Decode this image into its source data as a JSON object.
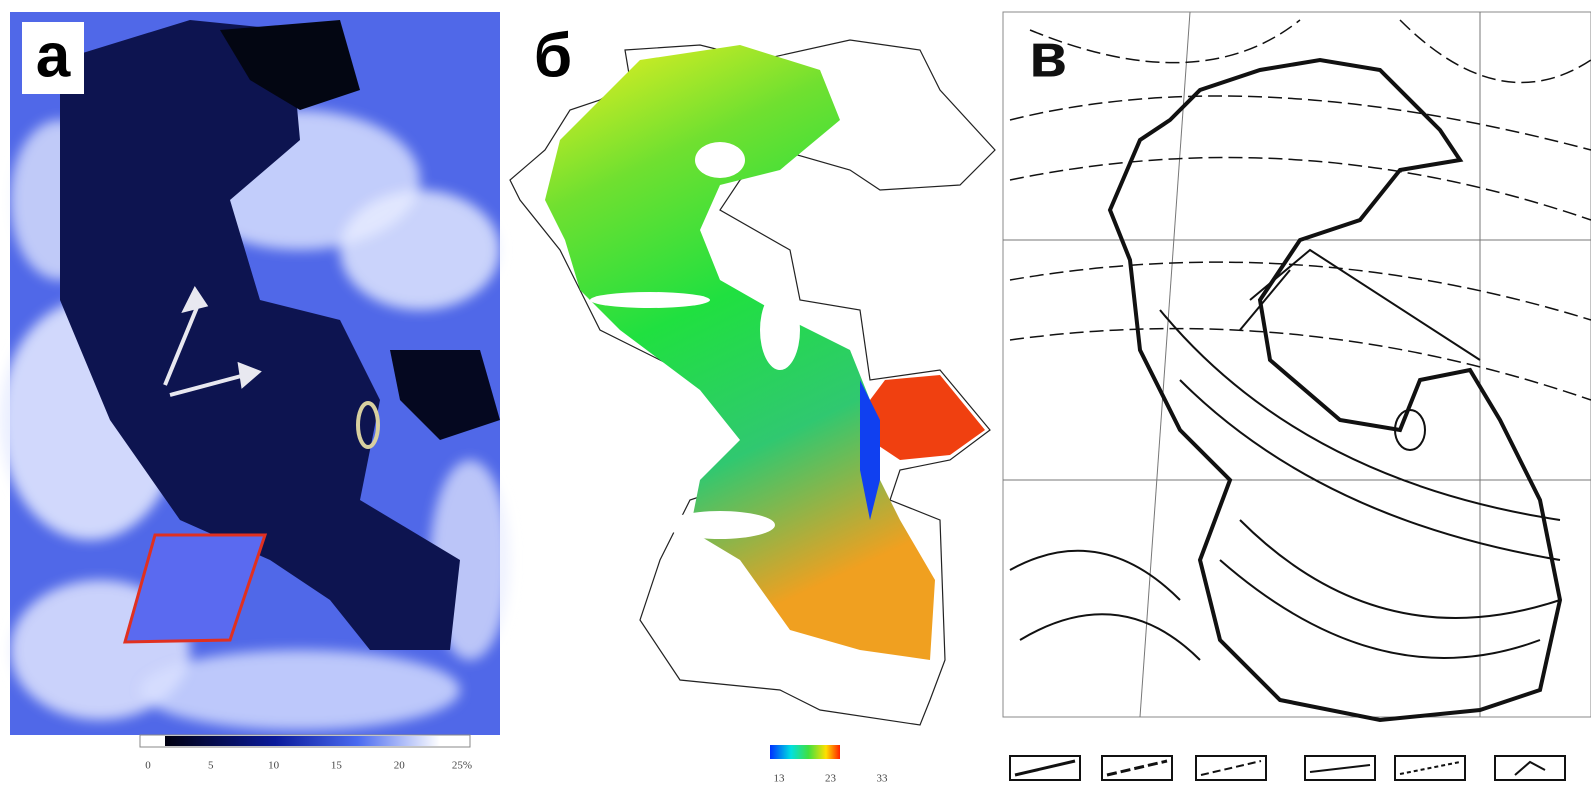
{
  "panels": [
    {
      "label": "а",
      "colorbar": {
        "ticks": [
          "0",
          "5",
          "10",
          "15",
          "20",
          "25%"
        ]
      }
    },
    {
      "label": "б",
      "colorbar": {
        "ticks": [
          "13",
          "23",
          "33"
        ]
      }
    },
    {
      "label": "в"
    }
  ]
}
